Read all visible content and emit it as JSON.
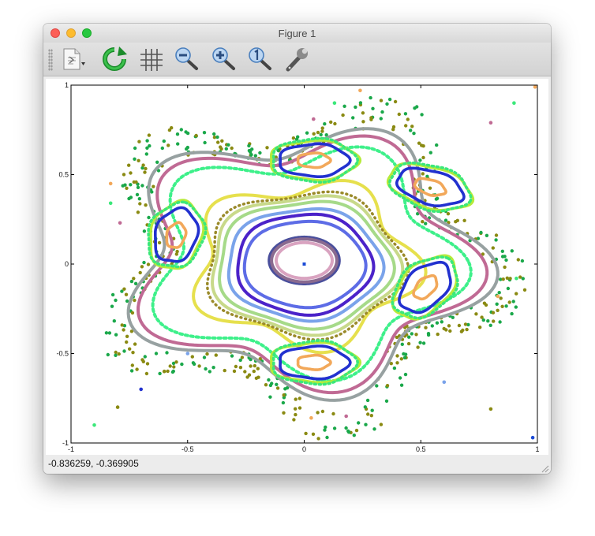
{
  "window": {
    "title": "Figure 1"
  },
  "toolbar": {
    "tools": [
      {
        "icon": "insert-text-icon"
      },
      {
        "icon": "refresh-icon"
      },
      {
        "icon": "grid-icon"
      },
      {
        "icon": "zoom-out-icon"
      },
      {
        "icon": "zoom-in-icon"
      },
      {
        "icon": "zoom-reset-icon"
      },
      {
        "icon": "settings-wrench-icon"
      }
    ]
  },
  "status": {
    "coordinates": "-0.836259, -0.369905"
  },
  "chart_data": {
    "type": "scatter",
    "xlim": [
      -1,
      1
    ],
    "ylim": [
      -1,
      1
    ],
    "x_ticks": [
      -1,
      -0.5,
      0,
      0.5,
      1
    ],
    "y_ticks": [
      -1,
      -0.5,
      0,
      0.5,
      1
    ],
    "x_tick_labels": [
      "-1",
      "-0.5",
      "0",
      "0.5",
      "1"
    ],
    "y_tick_labels": [
      "-1",
      "-0.5",
      "0",
      "0.5",
      "1"
    ],
    "grid": false,
    "center_point": {
      "x": 0,
      "y": 0,
      "color": "#1b4bd6"
    },
    "central_orbits": [
      {
        "color": "#8a6a8f",
        "rx": 0.14,
        "ry": 0.12,
        "cx": 0.0,
        "cy": 0.02,
        "p": 0.0
      },
      {
        "color": "#d9a3c0",
        "rx": 0.12,
        "ry": 0.1,
        "cx": 0.0,
        "cy": 0.02,
        "p": 0.0
      },
      {
        "color": "#4a4f9c",
        "rx": 0.15,
        "ry": 0.13,
        "cx": 0.0,
        "cy": 0.02,
        "p": 0.0
      },
      {
        "color": "#5d6ce6",
        "rx": 0.26,
        "ry": 0.24,
        "cx": 0.0,
        "cy": 0.0,
        "p": 0.02
      },
      {
        "color": "#4b22c9",
        "rx": 0.29,
        "ry": 0.28,
        "cx": 0.0,
        "cy": 0.0,
        "p": 0.03
      },
      {
        "color": "#7aa3ea",
        "rx": 0.33,
        "ry": 0.31,
        "cx": 0.0,
        "cy": 0.0,
        "p": 0.04
      },
      {
        "color": "#a6da89",
        "rx": 0.37,
        "ry": 0.35,
        "cx": 0.0,
        "cy": 0.0,
        "p": 0.05
      },
      {
        "color": "#c8d98a",
        "rx": 0.4,
        "ry": 0.38,
        "cx": 0.0,
        "cy": 0.0,
        "p": 0.06
      },
      {
        "color": "#9a8a2a",
        "rx": 0.42,
        "ry": 0.4,
        "cx": 0.0,
        "cy": 0.0,
        "p": 0.07,
        "dotted": true
      },
      {
        "color": "#e6e04d",
        "rx": 0.46,
        "ry": 0.44,
        "cx": 0.0,
        "cy": 0.0,
        "p": 0.14
      }
    ],
    "islands": [
      {
        "cx": 0.04,
        "cy": 0.58,
        "angle": 0
      },
      {
        "cx": 0.54,
        "cy": 0.43,
        "angle": -25
      },
      {
        "cx": 0.52,
        "cy": -0.13,
        "angle": 60
      },
      {
        "cx": 0.04,
        "cy": -0.55,
        "angle": 0
      },
      {
        "cx": -0.55,
        "cy": 0.16,
        "angle": 80
      }
    ],
    "island_rings": [
      {
        "color": "#f2a85a",
        "rx": 0.07,
        "ry": 0.04
      },
      {
        "color": "#2231cf",
        "rx": 0.15,
        "ry": 0.09
      },
      {
        "color": "#3be87a",
        "rx": 0.18,
        "ry": 0.12
      },
      {
        "color": "#b6ea3a",
        "rx": 0.19,
        "ry": 0.11
      }
    ],
    "outer_orbits": [
      {
        "color": "#3ef08a",
        "r": 0.62,
        "p": 0.16,
        "dotted": true
      },
      {
        "color": "#c06a94",
        "r": 0.68,
        "p": 0.16
      },
      {
        "color": "#97a1a1",
        "r": 0.72,
        "p": 0.16
      }
    ],
    "chaotic_band": {
      "colors": [
        "#8a8a12",
        "#1aa84a"
      ],
      "r_min": 0.74,
      "r_max": 0.92,
      "p": 0.2
    },
    "stray_points": [
      {
        "x": 0.24,
        "y": 0.97,
        "color": "#f2a85a"
      },
      {
        "x": 0.13,
        "y": 0.9,
        "color": "#3be87a"
      },
      {
        "x": 0.04,
        "y": 0.81,
        "color": "#c06a94"
      },
      {
        "x": 0.9,
        "y": 0.9,
        "color": "#3be87a"
      },
      {
        "x": 0.8,
        "y": 0.79,
        "color": "#c06a94"
      },
      {
        "x": 0.99,
        "y": 0.99,
        "color": "#f2a85a"
      },
      {
        "x": -0.83,
        "y": 0.45,
        "color": "#f2a85a"
      },
      {
        "x": -0.83,
        "y": 0.34,
        "color": "#3be87a"
      },
      {
        "x": -0.79,
        "y": 0.23,
        "color": "#c06a94"
      },
      {
        "x": -0.5,
        "y": -0.5,
        "color": "#7aa3ea"
      },
      {
        "x": -0.6,
        "y": -0.6,
        "color": "#8a8a12"
      },
      {
        "x": -0.7,
        "y": -0.7,
        "color": "#2231cf"
      },
      {
        "x": -0.8,
        "y": -0.8,
        "color": "#8a8a12"
      },
      {
        "x": -0.9,
        "y": -0.9,
        "color": "#3be87a"
      },
      {
        "x": 0.6,
        "y": -0.66,
        "color": "#7aa3ea"
      },
      {
        "x": 0.8,
        "y": -0.81,
        "color": "#8a8a12"
      },
      {
        "x": 0.83,
        "y": -0.18,
        "color": "#f2a85a"
      },
      {
        "x": 0.91,
        "y": -0.08,
        "color": "#3be87a"
      },
      {
        "x": 0.18,
        "y": -0.85,
        "color": "#c06a94"
      },
      {
        "x": 0.03,
        "y": -0.86,
        "color": "#f2a85a"
      },
      {
        "x": 0.98,
        "y": -0.97,
        "color": "#1b4bd6"
      }
    ]
  }
}
